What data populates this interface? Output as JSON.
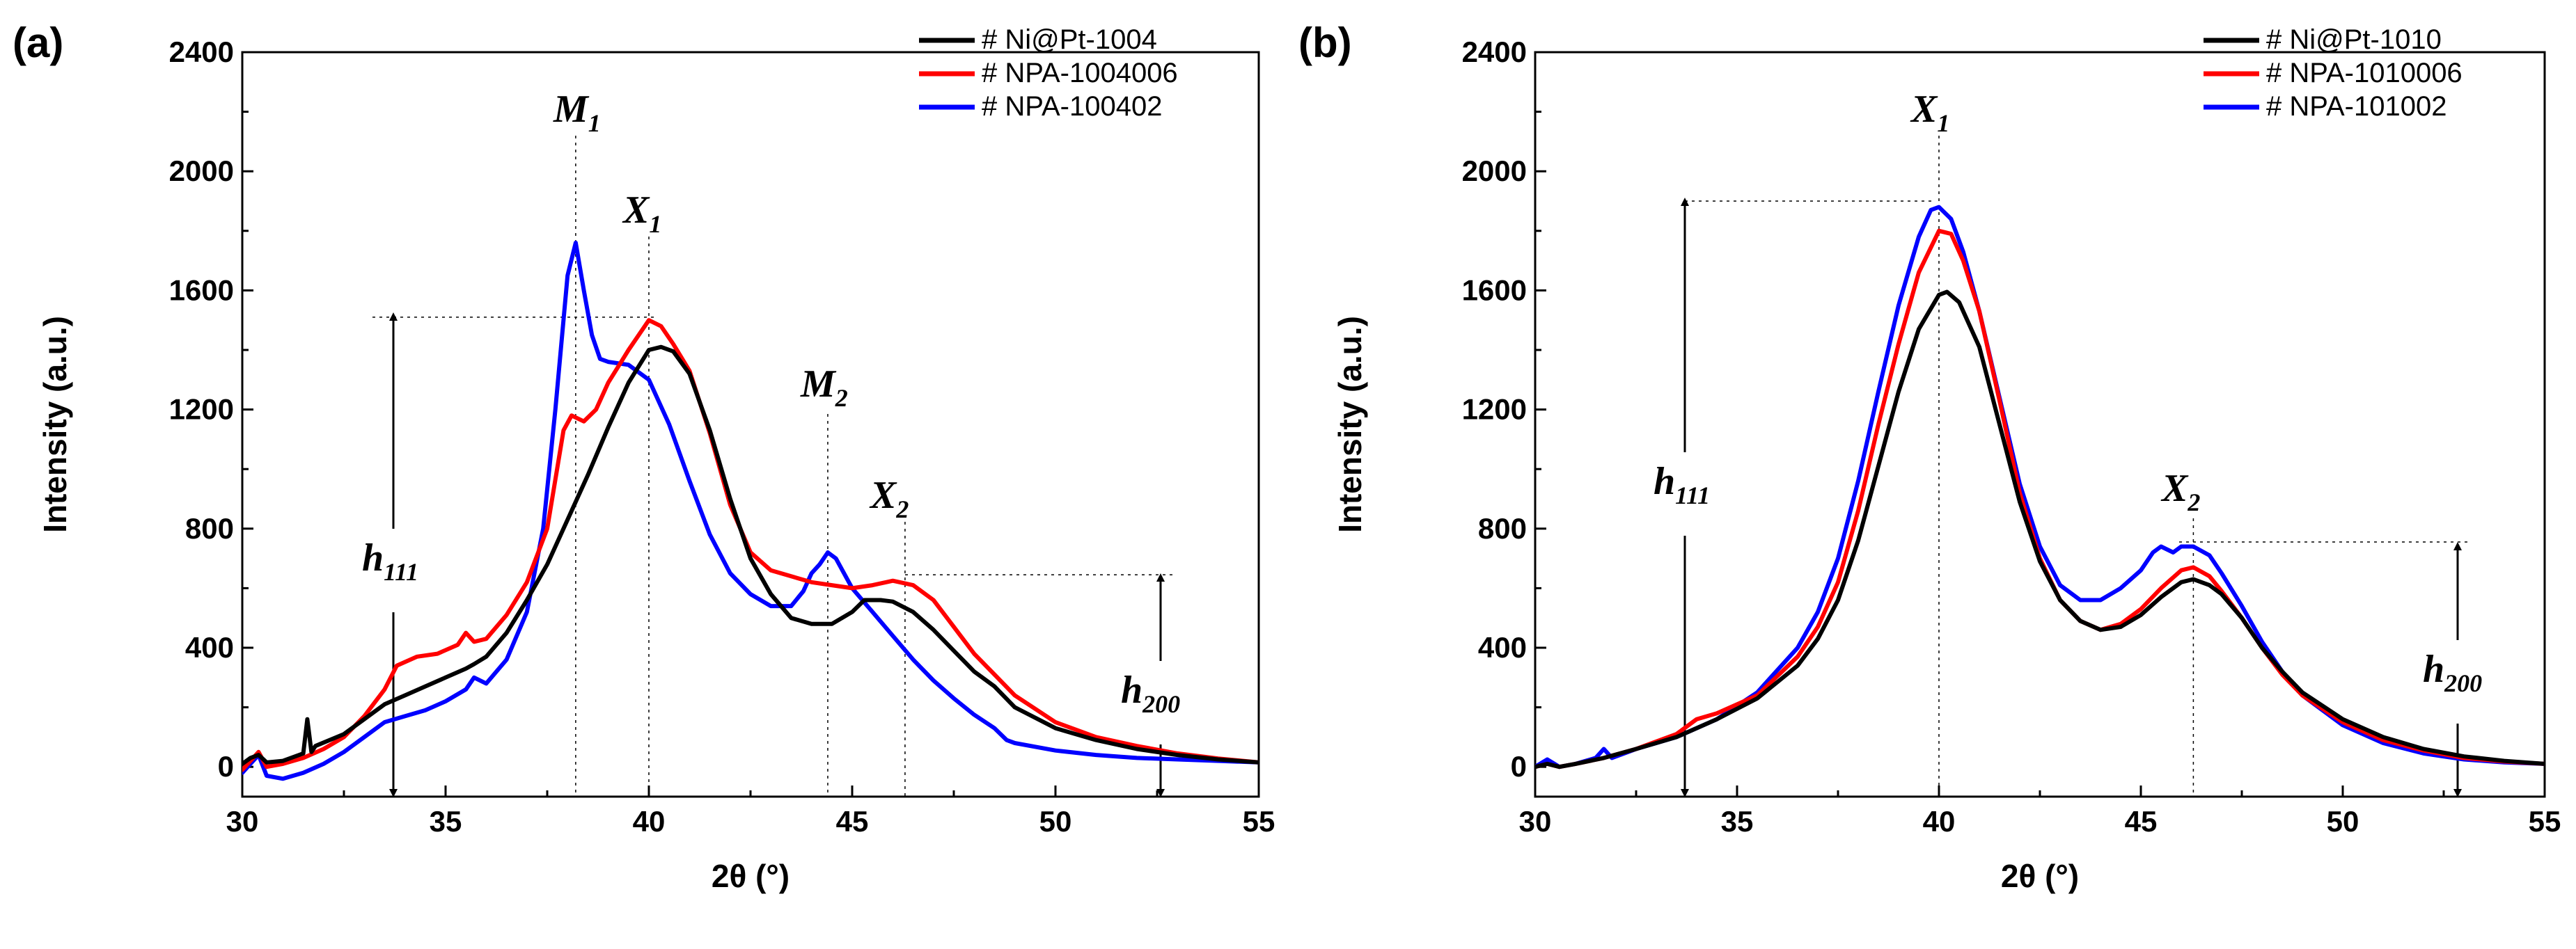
{
  "chart_data": [
    {
      "type": "line",
      "panel_label": "(a)",
      "xlabel": "2θ (°)",
      "ylabel": "Intensity (a.u.)",
      "xlim": [
        30,
        55
      ],
      "ylim": [
        -100,
        2400
      ],
      "xticks": [
        30,
        35,
        40,
        45,
        50,
        55
      ],
      "yticks": [
        0,
        400,
        800,
        1200,
        1600,
        2000,
        2400
      ],
      "legend_position": "top-right",
      "series": [
        {
          "name": "# Ni@Pt-1004",
          "color": "#000000",
          "x": [
            30.0,
            30.2,
            30.4,
            30.6,
            31.0,
            31.5,
            31.6,
            31.7,
            31.8,
            32.5,
            33.0,
            33.5,
            34.0,
            34.5,
            35.0,
            35.5,
            35.7,
            36.0,
            36.5,
            37.0,
            37.5,
            38.0,
            38.5,
            39.0,
            39.5,
            40.0,
            40.3,
            40.6,
            41.0,
            41.5,
            42.0,
            42.5,
            43.0,
            43.5,
            44.0,
            44.5,
            45.0,
            45.3,
            45.7,
            46.0,
            46.5,
            47.0,
            47.5,
            48.0,
            48.5,
            49.0,
            50.0,
            51.0,
            52.0,
            53.0,
            54.0,
            55.0
          ],
          "y": [
            10,
            30,
            40,
            15,
            20,
            45,
            160,
            50,
            70,
            110,
            160,
            210,
            240,
            270,
            300,
            330,
            345,
            370,
            450,
            560,
            680,
            830,
            980,
            1140,
            1290,
            1400,
            1410,
            1395,
            1320,
            1130,
            900,
            700,
            580,
            500,
            480,
            480,
            520,
            560,
            560,
            555,
            520,
            460,
            390,
            320,
            270,
            200,
            130,
            90,
            60,
            40,
            25,
            15
          ]
        },
        {
          "name": "# NPA-1004006",
          "color": "#ff0000",
          "x": [
            30.0,
            30.2,
            30.4,
            30.6,
            31.0,
            31.5,
            32.0,
            32.5,
            33.0,
            33.5,
            33.8,
            34.3,
            34.8,
            35.3,
            35.5,
            35.7,
            36.0,
            36.5,
            37.0,
            37.5,
            37.9,
            38.1,
            38.4,
            38.7,
            39.0,
            39.5,
            40.0,
            40.3,
            40.6,
            41.0,
            41.5,
            42.0,
            42.5,
            43.0,
            43.5,
            44.0,
            44.5,
            45.0,
            45.5,
            46.0,
            46.5,
            47.0,
            47.5,
            48.0,
            48.5,
            49.0,
            50.0,
            51.0,
            52.0,
            53.0,
            54.0,
            55.0
          ],
          "y": [
            -10,
            20,
            50,
            0,
            10,
            30,
            60,
            100,
            170,
            260,
            340,
            370,
            380,
            410,
            450,
            420,
            430,
            510,
            620,
            800,
            1130,
            1180,
            1160,
            1200,
            1290,
            1400,
            1500,
            1480,
            1420,
            1330,
            1120,
            880,
            720,
            660,
            640,
            620,
            610,
            600,
            610,
            625,
            610,
            560,
            470,
            380,
            310,
            240,
            150,
            100,
            70,
            45,
            28,
            15
          ]
        },
        {
          "name": "# NPA-100402",
          "color": "#0000ff",
          "x": [
            30.0,
            30.2,
            30.4,
            30.6,
            31.0,
            31.5,
            32.0,
            32.5,
            33.0,
            33.5,
            34.0,
            34.5,
            35.0,
            35.5,
            35.7,
            36.0,
            36.5,
            37.0,
            37.4,
            37.7,
            38.0,
            38.2,
            38.4,
            38.6,
            38.8,
            39.0,
            39.5,
            40.0,
            40.5,
            41.0,
            41.5,
            42.0,
            42.5,
            43.0,
            43.5,
            43.8,
            44.0,
            44.2,
            44.4,
            44.6,
            45.0,
            45.5,
            46.0,
            46.5,
            47.0,
            47.5,
            48.0,
            48.5,
            48.8,
            49.0,
            50.0,
            51.0,
            52.0,
            53.0,
            54.0,
            55.0
          ],
          "y": [
            -20,
            10,
            40,
            -30,
            -40,
            -20,
            10,
            50,
            100,
            150,
            170,
            190,
            220,
            260,
            300,
            280,
            360,
            520,
            800,
            1200,
            1650,
            1760,
            1600,
            1450,
            1370,
            1360,
            1350,
            1300,
            1150,
            960,
            780,
            650,
            580,
            540,
            540,
            590,
            650,
            680,
            720,
            700,
            600,
            520,
            440,
            360,
            290,
            230,
            175,
            130,
            90,
            80,
            55,
            40,
            30,
            25,
            20,
            15
          ]
        }
      ],
      "annotations": [
        {
          "label": "M",
          "sub": "1",
          "x": 38.2
        },
        {
          "label": "X",
          "sub": "1",
          "x": 40.0
        },
        {
          "label": "M",
          "sub": "2",
          "x": 44.4
        },
        {
          "label": "X",
          "sub": "2",
          "x": 46.3
        },
        {
          "label": "h",
          "sub": "111"
        },
        {
          "label": "h",
          "sub": "200"
        }
      ]
    },
    {
      "type": "line",
      "panel_label": "(b)",
      "xlabel": "2θ (°)",
      "ylabel": "Intensity (a.u.)",
      "xlim": [
        30,
        55
      ],
      "ylim": [
        -100,
        2400
      ],
      "xticks": [
        30,
        35,
        40,
        45,
        50,
        55
      ],
      "yticks": [
        0,
        400,
        800,
        1200,
        1600,
        2000,
        2400
      ],
      "legend_position": "top-right",
      "series": [
        {
          "name": "# Ni@Pt-1010",
          "color": "#000000",
          "x": [
            30.0,
            30.3,
            30.6,
            31.0,
            31.7,
            32.5,
            33.5,
            34.5,
            35.5,
            36.5,
            37.0,
            37.5,
            38.0,
            38.5,
            39.0,
            39.5,
            40.0,
            40.2,
            40.5,
            41.0,
            41.5,
            42.0,
            42.5,
            43.0,
            43.5,
            44.0,
            44.5,
            45.0,
            45.5,
            46.0,
            46.3,
            46.7,
            47.0,
            47.5,
            48.0,
            48.5,
            49.0,
            50.0,
            51.0,
            52.0,
            53.0,
            54.0,
            55.0
          ],
          "y": [
            0,
            10,
            0,
            10,
            30,
            60,
            100,
            160,
            230,
            340,
            430,
            560,
            760,
            1010,
            1260,
            1470,
            1585,
            1595,
            1560,
            1410,
            1150,
            890,
            690,
            560,
            490,
            460,
            470,
            510,
            570,
            620,
            630,
            610,
            580,
            500,
            400,
            320,
            250,
            160,
            100,
            60,
            35,
            20,
            10
          ]
        },
        {
          "name": "# NPA-1010006",
          "color": "#ff0000",
          "x": [
            30.0,
            30.3,
            30.6,
            31.0,
            31.7,
            32.5,
            33.5,
            34.0,
            34.5,
            35.5,
            36.5,
            37.0,
            37.5,
            38.0,
            38.5,
            39.0,
            39.5,
            40.0,
            40.3,
            40.6,
            41.0,
            41.5,
            42.0,
            42.5,
            43.0,
            43.5,
            44.0,
            44.5,
            45.0,
            45.5,
            46.0,
            46.3,
            46.7,
            47.0,
            47.5,
            48.0,
            48.5,
            49.0,
            50.0,
            51.0,
            52.0,
            53.0,
            54.0,
            55.0
          ],
          "y": [
            0,
            10,
            0,
            10,
            30,
            60,
            110,
            160,
            180,
            240,
            370,
            470,
            620,
            860,
            1150,
            1420,
            1660,
            1800,
            1790,
            1700,
            1530,
            1230,
            920,
            700,
            560,
            490,
            460,
            480,
            530,
            600,
            660,
            670,
            640,
            590,
            500,
            400,
            310,
            240,
            150,
            90,
            55,
            30,
            18,
            10
          ]
        },
        {
          "name": "# NPA-101002",
          "color": "#0000ff",
          "x": [
            30.0,
            30.3,
            30.6,
            31.0,
            31.5,
            31.7,
            31.9,
            32.5,
            33.5,
            34.5,
            35.5,
            36.5,
            37.0,
            37.5,
            38.0,
            38.5,
            39.0,
            39.5,
            39.8,
            40.0,
            40.3,
            40.6,
            41.0,
            41.5,
            42.0,
            42.5,
            43.0,
            43.5,
            44.0,
            44.5,
            45.0,
            45.3,
            45.5,
            45.8,
            46.0,
            46.3,
            46.7,
            47.0,
            47.5,
            48.0,
            48.5,
            49.0,
            50.0,
            51.0,
            52.0,
            53.0,
            54.0,
            55.0
          ],
          "y": [
            0,
            25,
            0,
            10,
            30,
            60,
            30,
            60,
            100,
            160,
            250,
            400,
            520,
            700,
            960,
            1260,
            1550,
            1780,
            1870,
            1880,
            1840,
            1730,
            1530,
            1240,
            950,
            740,
            610,
            560,
            560,
            600,
            660,
            720,
            740,
            720,
            740,
            740,
            710,
            650,
            540,
            420,
            320,
            240,
            140,
            80,
            45,
            25,
            15,
            10
          ]
        }
      ],
      "annotations": [
        {
          "label": "X",
          "sub": "1",
          "x": 40.0
        },
        {
          "label": "X",
          "sub": "2",
          "x": 46.3
        },
        {
          "label": "h",
          "sub": "111"
        },
        {
          "label": "h",
          "sub": "200"
        }
      ]
    }
  ]
}
